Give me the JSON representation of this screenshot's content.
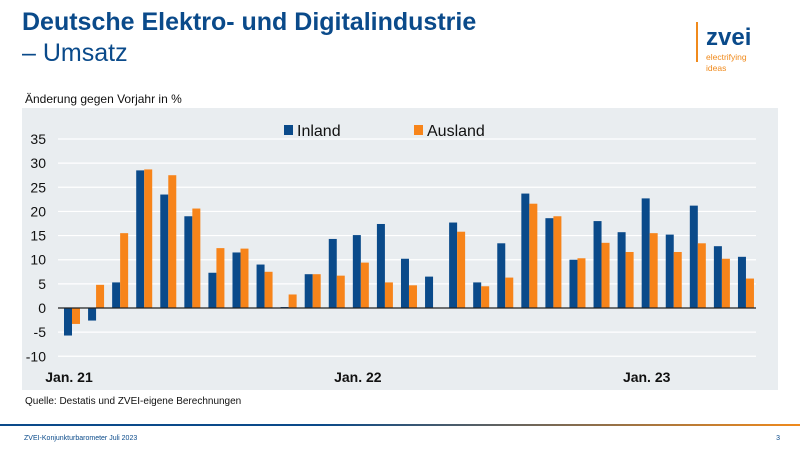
{
  "header": {
    "title_line1": "Deutsche Elektro- und Digitalindustrie",
    "title_line2": "– Umsatz"
  },
  "logo": {
    "name": "zvei",
    "tagline1": "electrifying",
    "tagline2": "ideas"
  },
  "footer": {
    "source": "Quelle: Destatis und ZVEI-eigene Berechnungen",
    "doc": "ZVEI-Konjunkturbarometer Juli 2023",
    "page": "3"
  },
  "chart_data": {
    "type": "bar",
    "ylabel": "Änderung gegen Vorjahr in %",
    "ylim": [
      -10,
      35
    ],
    "yticks": [
      "35",
      "30",
      "25",
      "20",
      "15",
      "10",
      "5",
      "0",
      "-5",
      "-10"
    ],
    "x_tick_labels": [
      {
        "index": 0,
        "label": "Jan. 21"
      },
      {
        "index": 12,
        "label": "Jan. 22"
      },
      {
        "index": 24,
        "label": "Jan. 23"
      }
    ],
    "grid": true,
    "legend": "top",
    "colors": {
      "Inland": "#0a4a8a",
      "Ausland": "#f7841a"
    },
    "series": [
      {
        "name": "Inland",
        "values": [
          -5.7,
          -2.6,
          5.3,
          28.5,
          23.5,
          19,
          7.3,
          11.5,
          9,
          0.2,
          7,
          14.3,
          15.1,
          17.4,
          10.2,
          6.5,
          17.7,
          5.3,
          13.4,
          23.7,
          18.6,
          10,
          18,
          15.7,
          22.7,
          15.2,
          21.2,
          12.8,
          10.6
        ]
      },
      {
        "name": "Ausland",
        "values": [
          -3.3,
          4.8,
          15.5,
          28.7,
          27.5,
          20.6,
          12.4,
          12.3,
          7.5,
          2.8,
          7,
          6.7,
          9.4,
          5.3,
          4.7,
          null,
          15.8,
          4.5,
          6.3,
          21.6,
          19,
          10.3,
          13.5,
          11.6,
          15.5,
          11.6,
          13.4,
          10.2,
          6.1
        ]
      }
    ]
  }
}
